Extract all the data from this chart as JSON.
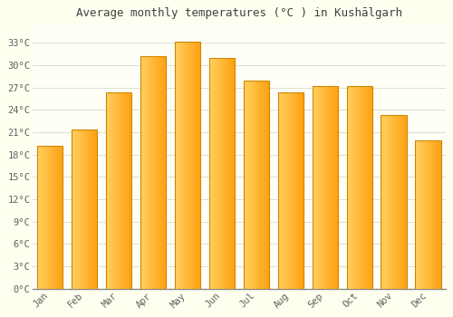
{
  "months": [
    "Jan",
    "Feb",
    "Mar",
    "Apr",
    "May",
    "Jun",
    "Jul",
    "Aug",
    "Sep",
    "Oct",
    "Nov",
    "Dec"
  ],
  "values": [
    19.2,
    21.3,
    26.3,
    31.2,
    33.1,
    31.0,
    27.9,
    26.3,
    27.2,
    27.2,
    23.3,
    19.9
  ],
  "title": "Average monthly temperatures (°C ) in Kushālgarh",
  "yticks": [
    0,
    3,
    6,
    9,
    12,
    15,
    18,
    21,
    24,
    27,
    30,
    33
  ],
  "ylim": [
    0,
    35.5
  ],
  "bar_color_left": "#FFD060",
  "bar_color_right": "#FFA010",
  "bar_edge_color": "#CC8800",
  "background_color": "#FFFFF0",
  "plot_bg_color": "#FFFFF8",
  "grid_color": "#DDDDD0",
  "tick_color": "#606060",
  "title_color": "#404040",
  "bar_width": 0.75
}
